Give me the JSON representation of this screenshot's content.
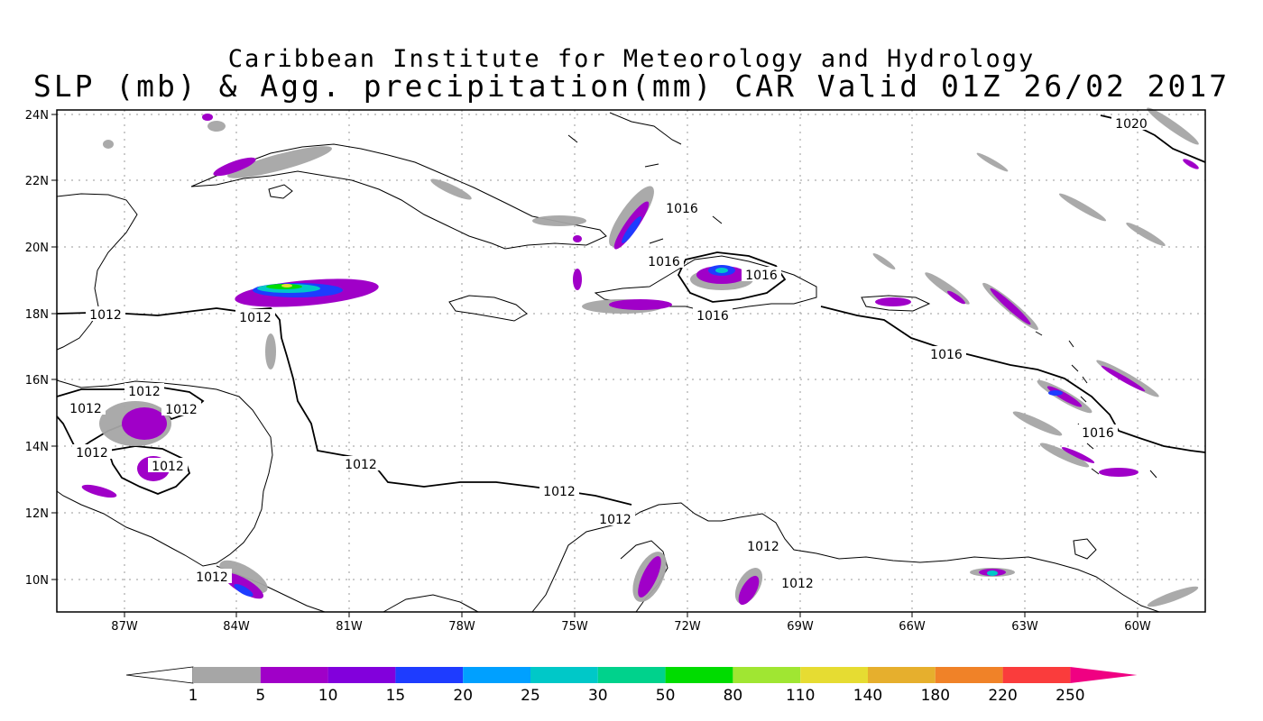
{
  "title_line1": "Caribbean Institute for Meteorology and Hydrology",
  "title_line2": "SLP (mb) & Agg. precipitation(mm) CAR Valid 01Z 26/02 2017",
  "lat_labels": [
    "24N",
    "22N",
    "20N",
    "18N",
    "16N",
    "14N",
    "12N",
    "10N"
  ],
  "lon_labels": [
    "87W",
    "84W",
    "81W",
    "78W",
    "75W",
    "72W",
    "69W",
    "66W",
    "63W",
    "60W"
  ],
  "isobars": [
    {
      "value": "1020"
    },
    {
      "value": "1016"
    },
    {
      "value": "1016"
    },
    {
      "value": "1016"
    },
    {
      "value": "1016"
    },
    {
      "value": "1016"
    },
    {
      "value": "1016"
    },
    {
      "value": "1012"
    },
    {
      "value": "1012"
    },
    {
      "value": "1012"
    },
    {
      "value": "1012"
    },
    {
      "value": "1012"
    },
    {
      "value": "1012"
    },
    {
      "value": "1012"
    },
    {
      "value": "1012"
    },
    {
      "value": "1012"
    },
    {
      "value": "1012"
    },
    {
      "value": "1012"
    },
    {
      "value": "1012"
    },
    {
      "value": "1012"
    }
  ],
  "colorbar": {
    "labels": [
      "1",
      "5",
      "10",
      "15",
      "20",
      "25",
      "30",
      "50",
      "80",
      "110",
      "140",
      "180",
      "220",
      "250"
    ],
    "colors": [
      "#a6a6a6",
      "#a000c8",
      "#8200dc",
      "#1e3cff",
      "#00a0ff",
      "#00c8c8",
      "#00d28c",
      "#00dc00",
      "#a0e632",
      "#e6dc32",
      "#e6af2d",
      "#f08228",
      "#fa3c3c",
      "#f00082"
    ],
    "low_color": "#ffffff"
  }
}
